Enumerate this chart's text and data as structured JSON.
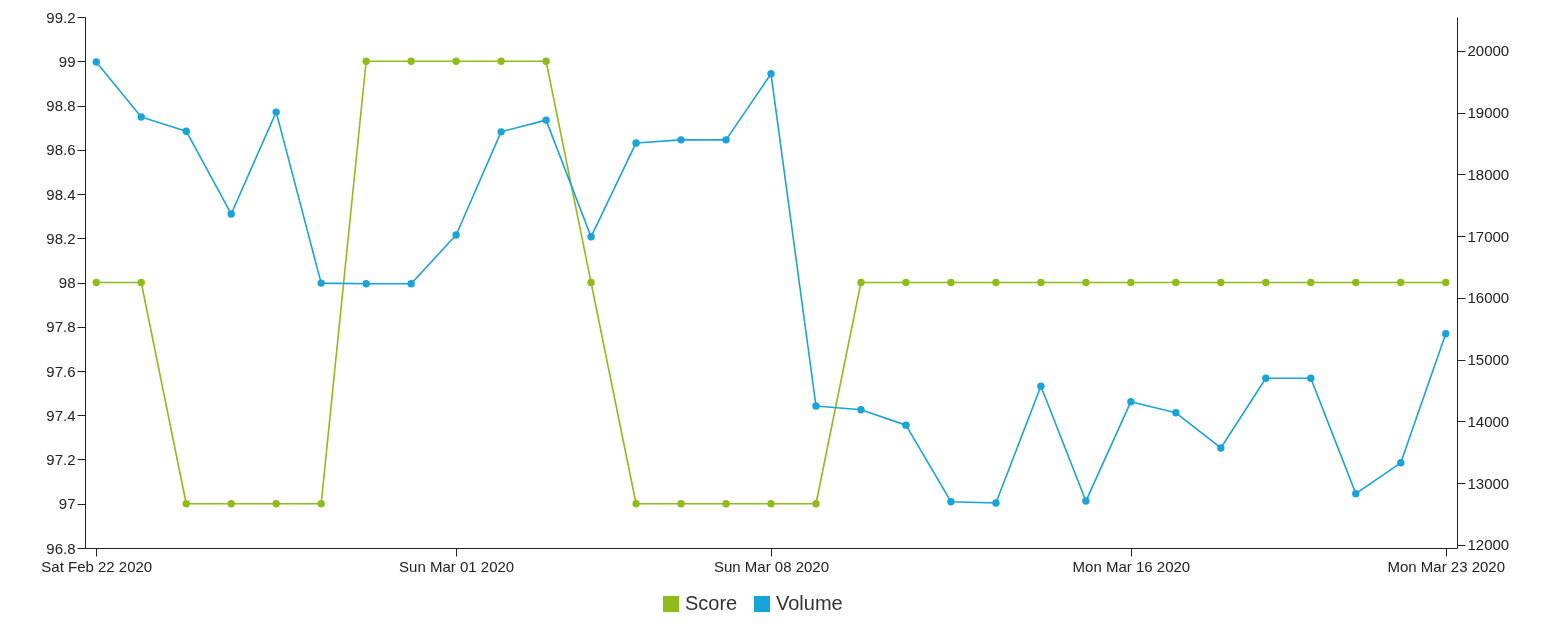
{
  "chart_data": {
    "type": "line",
    "x": [
      "2020-02-22",
      "2020-02-23",
      "2020-02-24",
      "2020-02-25",
      "2020-02-26",
      "2020-02-27",
      "2020-02-28",
      "2020-02-29",
      "2020-03-01",
      "2020-03-02",
      "2020-03-03",
      "2020-03-04",
      "2020-03-05",
      "2020-03-06",
      "2020-03-07",
      "2020-03-08",
      "2020-03-09",
      "2020-03-10",
      "2020-03-11",
      "2020-03-12",
      "2020-03-13",
      "2020-03-14",
      "2020-03-15",
      "2020-03-16",
      "2020-03-17",
      "2020-03-18",
      "2020-03-19",
      "2020-03-20",
      "2020-03-21",
      "2020-03-22",
      "2020-03-23"
    ],
    "series": [
      {
        "name": "Score",
        "color": "#8fbc1a",
        "values": [
          98,
          98,
          97,
          97,
          97,
          97,
          99,
          99,
          99,
          99,
          99,
          98,
          97,
          97,
          97,
          97,
          97,
          98,
          98,
          98,
          98,
          98,
          98,
          98,
          98,
          98,
          98,
          98,
          98,
          98,
          98
        ]
      },
      {
        "name": "Volume",
        "color": "#1aa3d9",
        "axis": "y2",
        "values": [
          19820,
          18930,
          18700,
          17360,
          19010,
          16240,
          16230,
          16230,
          17020,
          18690,
          18880,
          16990,
          18510,
          18560,
          18560,
          19630,
          14250,
          14190,
          13940,
          12700,
          12680,
          14570,
          12710,
          14320,
          14140,
          13570,
          14700,
          14700,
          12830,
          13330,
          15420
        ]
      }
    ],
    "xlim": [
      "2020-02-21T18:00",
      "2020-03-23T06:00"
    ],
    "xticks": [
      {
        "value": "2020-02-22",
        "label": "Sat Feb 22 2020"
      },
      {
        "value": "2020-03-01",
        "label": "Sun Mar 01 2020"
      },
      {
        "value": "2020-03-08",
        "label": "Sun Mar 08 2020"
      },
      {
        "value": "2020-03-16",
        "label": "Mon Mar 16 2020"
      },
      {
        "value": "2020-03-23",
        "label": "Mon Mar 23 2020"
      }
    ],
    "ylim": [
      96.8,
      99.2
    ],
    "yticks": [
      96.8,
      97,
      97.2,
      97.4,
      97.6,
      97.8,
      98,
      98.2,
      98.4,
      98.6,
      98.8,
      99,
      99.2
    ],
    "y2lim": [
      11950,
      20550
    ],
    "y2ticks": [
      12000,
      13000,
      14000,
      15000,
      16000,
      17000,
      18000,
      19000,
      20000
    ],
    "legend": "bottom",
    "marker": "circle",
    "line_style": "solid"
  }
}
